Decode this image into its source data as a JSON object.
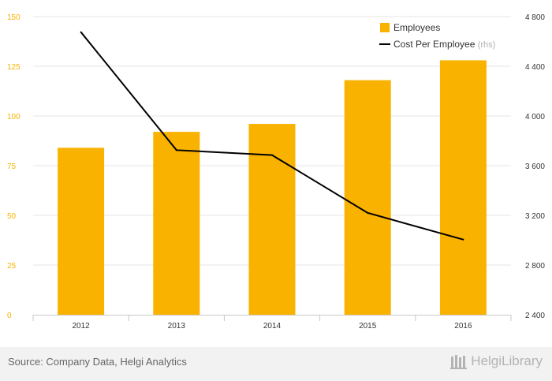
{
  "chart_data": {
    "type": "bar",
    "categories": [
      "2012",
      "2013",
      "2014",
      "2015",
      "2016"
    ],
    "series": [
      {
        "name": "Employees",
        "type": "bar",
        "axis": "left",
        "color": "#f9b200",
        "values": [
          84,
          92,
          96,
          118,
          128
        ]
      },
      {
        "name": "Cost Per Employee",
        "name_suffix": "(rhs)",
        "type": "line",
        "axis": "right",
        "color": "#000000",
        "values": [
          4675,
          3725,
          3685,
          3220,
          3005
        ]
      }
    ],
    "y_left": {
      "min": 0,
      "max": 150,
      "ticks": [
        "0",
        "25",
        "50",
        "75",
        "100",
        "125",
        "150"
      ],
      "tick_color": "#f9b200"
    },
    "y_right": {
      "min": 2400,
      "max": 4800,
      "ticks": [
        "2 400",
        "2 800",
        "3 200",
        "3 600",
        "4 000",
        "4 400",
        "4 800"
      ]
    },
    "grid": true,
    "legend_position": "top-right"
  },
  "footer": {
    "source": "Source: Company Data, Helgi Analytics",
    "brand": "HelgiLibrary"
  }
}
